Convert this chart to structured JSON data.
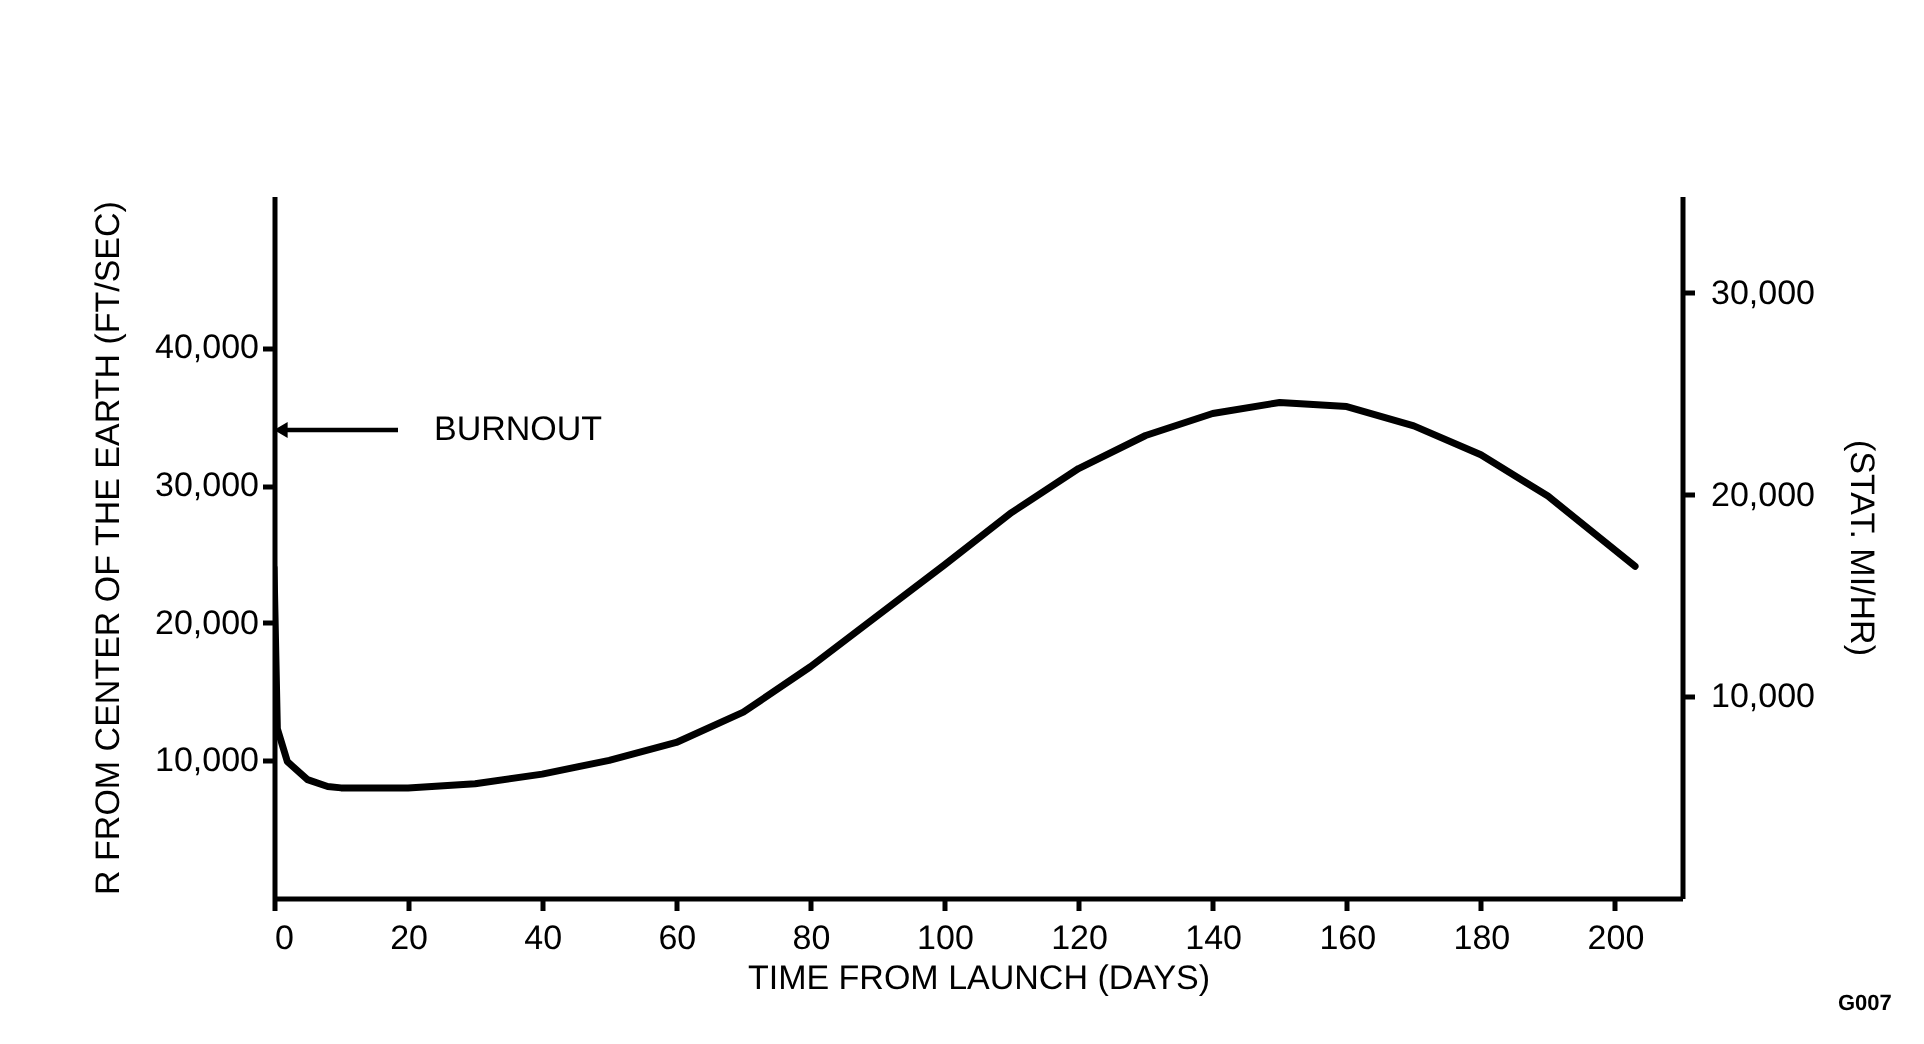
{
  "chart_data": {
    "type": "line",
    "xlabel": "TIME FROM LAUNCH (DAYS)",
    "ylabel": "R FROM CENTER OF THE EARTH (FT/SEC)",
    "y2label": "(STAT. MI/HR)",
    "annotations": [
      "BURNOUT",
      "G007"
    ],
    "x": [
      0,
      0.5,
      2,
      5,
      8,
      10,
      20,
      30,
      40,
      50,
      60,
      70,
      80,
      90,
      100,
      110,
      120,
      130,
      140,
      150,
      160,
      170,
      180,
      190,
      203
    ],
    "series": [
      {
        "color": "#000000",
        "values": [
          24000,
          12300,
          9900,
          8600,
          8100,
          8000,
          8000,
          8300,
          9000,
          10000,
          11300,
          13500,
          16800,
          20500,
          24200,
          28000,
          31200,
          33600,
          35200,
          36000,
          35700,
          34300,
          32200,
          29200,
          24100
        ]
      }
    ],
    "xlim": [
      0,
      210
    ],
    "xticks": [
      0,
      20,
      40,
      60,
      80,
      100,
      120,
      140,
      160,
      180,
      200
    ],
    "ylim": [
      0,
      51000
    ],
    "yticks": [
      {
        "value": 10000,
        "label": "10,000"
      },
      {
        "value": 20000,
        "label": "20,000"
      },
      {
        "value": 30000,
        "label": "30,000"
      },
      {
        "value": 40000,
        "label": "40,000"
      }
    ],
    "y2lim": [
      0,
      34800
    ],
    "y2ticks": [
      {
        "value": 10000,
        "label": "10,000"
      },
      {
        "value": 20000,
        "label": "20,000"
      },
      {
        "value": 30000,
        "label": "30,000"
      }
    ],
    "grid": false,
    "marker": "none",
    "line_style": "solid"
  }
}
